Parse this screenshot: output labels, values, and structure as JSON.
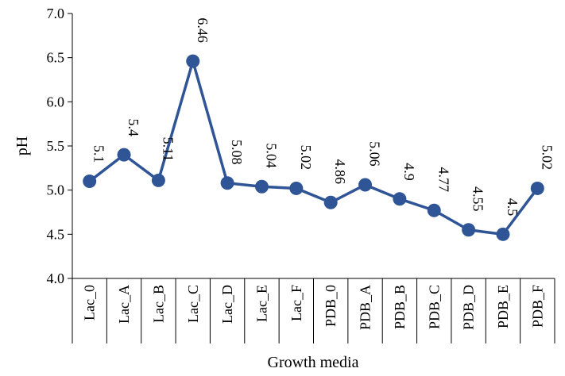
{
  "chart_data": {
    "type": "line",
    "xlabel": "Growth media",
    "ylabel": "pH",
    "ylim": [
      4.0,
      7.0
    ],
    "yticks": [
      "4.0",
      "4.5",
      "5.0",
      "5.5",
      "6.0",
      "6.5",
      "7.0"
    ],
    "categories": [
      "Lac_0",
      "Lac_A",
      "Lac_B",
      "Lac_C",
      "Lac_D",
      "Lac_E",
      "Lac_F",
      "PDB_0",
      "PDB_A",
      "PDB_B",
      "PDB_C",
      "PDB_D",
      "PDB_E",
      "PDB_F"
    ],
    "values": [
      5.1,
      5.4,
      5.11,
      6.46,
      5.08,
      5.04,
      5.02,
      4.86,
      5.06,
      4.9,
      4.77,
      4.55,
      4.5,
      5.02
    ],
    "data_labels": [
      "5.1",
      "5.4",
      "5.11",
      "6.46",
      "5.08",
      "5.04",
      "5.02",
      "4.86",
      "5.06",
      "4.9",
      "4.77",
      "4.55",
      "4.5",
      "5.02"
    ],
    "line_color": "#2F5597",
    "grid": false,
    "legend": "none"
  }
}
